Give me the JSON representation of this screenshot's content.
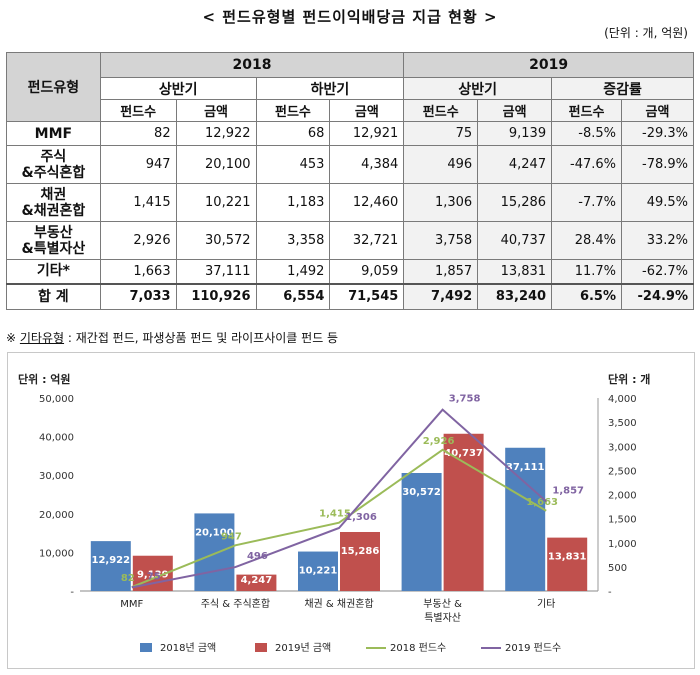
{
  "title": "< 펀드유형별 펀드이익배당금 지급 현황 >",
  "unit_note": "(단위 : 개, 억원)",
  "table": {
    "type_header": "펀드유형",
    "year_2018": "2018",
    "year_2019": "2019",
    "h1": "상반기",
    "h2": "하반기",
    "h3": "상반기",
    "change_header": "증감률",
    "sub_count": "펀드수",
    "sub_amount": "금액",
    "rows": [
      {
        "label1": "MMF",
        "label2": "",
        "c18a": "82",
        "a18a": "12,922",
        "c18b": "68",
        "a18b": "12,921",
        "c19": "75",
        "a19": "9,139",
        "dc": "-8.5%",
        "da": "-29.3%"
      },
      {
        "label1": "주식",
        "label2": "&주식혼합",
        "c18a": "947",
        "a18a": "20,100",
        "c18b": "453",
        "a18b": "4,384",
        "c19": "496",
        "a19": "4,247",
        "dc": "-47.6%",
        "da": "-78.9%"
      },
      {
        "label1": "채권",
        "label2": "&채권혼합",
        "c18a": "1,415",
        "a18a": "10,221",
        "c18b": "1,183",
        "a18b": "12,460",
        "c19": "1,306",
        "a19": "15,286",
        "dc": "-7.7%",
        "da": "49.5%"
      },
      {
        "label1": "부동산",
        "label2": "&특별자산",
        "c18a": "2,926",
        "a18a": "30,572",
        "c18b": "3,358",
        "a18b": "32,721",
        "c19": "3,758",
        "a19": "40,737",
        "dc": "28.4%",
        "da": "33.2%"
      },
      {
        "label1": "기타*",
        "label2": "",
        "c18a": "1,663",
        "a18a": "37,111",
        "c18b": "1,492",
        "a18b": "9,059",
        "c19": "1,857",
        "a19": "13,831",
        "dc": "11.7%",
        "da": "-62.7%"
      }
    ],
    "total": {
      "label": "합 계",
      "c18a": "7,033",
      "a18a": "110,926",
      "c18b": "6,554",
      "a18b": "71,545",
      "c19": "7,492",
      "a19": "83,240",
      "dc": "6.5%",
      "da": "-24.9%"
    }
  },
  "footnote": {
    "mark": "※",
    "term": "기타유형",
    "rest": " : 재간접 펀드, 파생상품 펀드 및 라이프사이클 펀드 등"
  },
  "chart_data": {
    "type": "bar",
    "categories": [
      "MMF",
      "주식 & 주식혼합",
      "채권 & 채권혼합",
      "부동산 & 특별자산",
      "기타"
    ],
    "series": [
      {
        "name": "2018년 금액",
        "kind": "bar",
        "axis": "left",
        "color": "#4f81bd",
        "values": [
          12922,
          20100,
          10221,
          30572,
          37111
        ]
      },
      {
        "name": "2019년 금액",
        "kind": "bar",
        "axis": "left",
        "color": "#c0504d",
        "values": [
          9139,
          4247,
          15286,
          40737,
          13831
        ]
      },
      {
        "name": "2018 펀드수",
        "kind": "line",
        "axis": "right",
        "color": "#9bbb59",
        "values": [
          82,
          947,
          1415,
          2926,
          1663
        ]
      },
      {
        "name": "2019 펀드수",
        "kind": "line",
        "axis": "right",
        "color": "#8064a2",
        "values": [
          75,
          496,
          1306,
          3758,
          1857
        ]
      }
    ],
    "left_axis_title": "단위 : 억원",
    "right_axis_title": "단위 : 개",
    "left_ticks": [
      "-",
      "10,000",
      "20,000",
      "30,000",
      "40,000",
      "50,000"
    ],
    "right_ticks": [
      "-",
      "500",
      "1,000",
      "1,500",
      "2,000",
      "2,500",
      "3,000",
      "3,500",
      "4,000"
    ],
    "ylim_left": [
      0,
      50000
    ],
    "ylim_right": [
      0,
      4000
    ],
    "legend_position": "bottom"
  }
}
